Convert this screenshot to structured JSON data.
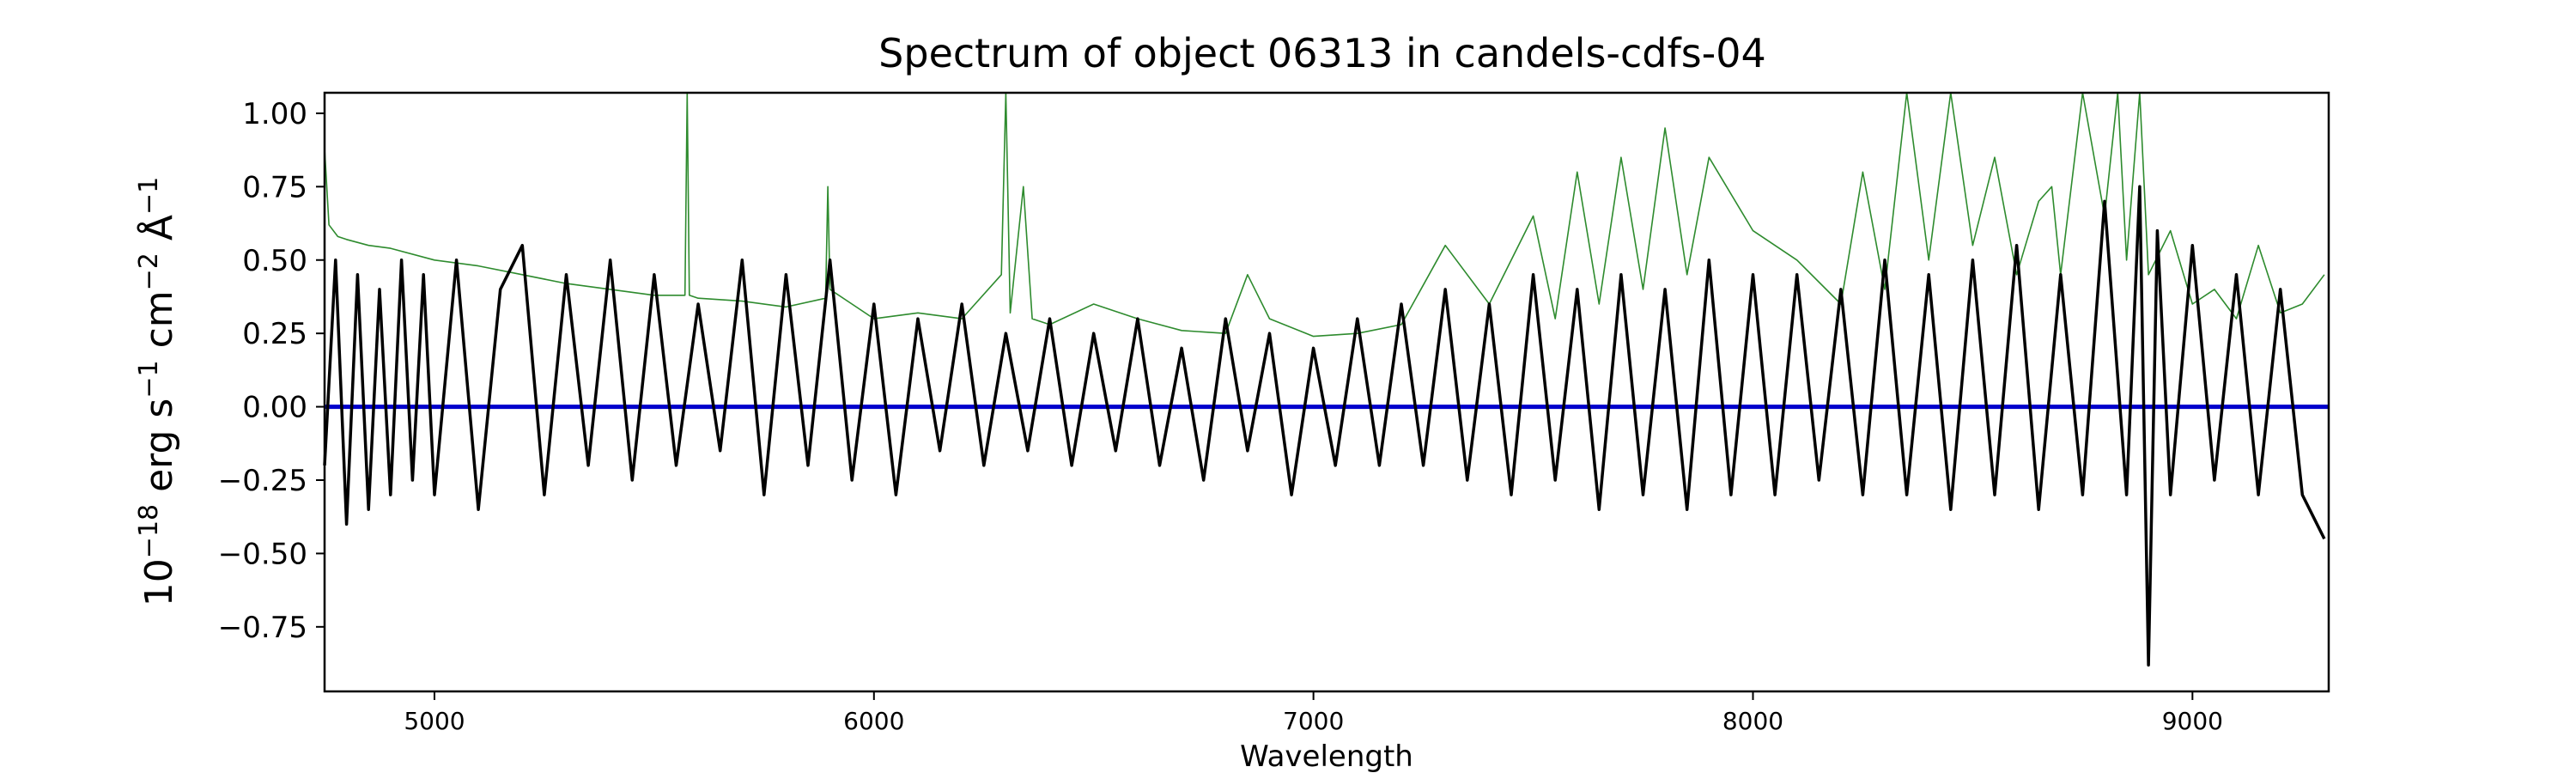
{
  "chart_data": {
    "type": "line",
    "title": "Spectrum of object 06313 in candels-cdfs-04",
    "xlabel": "Wavelength",
    "ylabel_parts": [
      "10",
      "−18",
      " erg s",
      "−1",
      " cm",
      "−2",
      " Å",
      "−1"
    ],
    "xlim": [
      4750,
      9310
    ],
    "ylim": [
      -0.97,
      1.07
    ],
    "x_ticks": [
      {
        "value": 5000,
        "label": "5000"
      },
      {
        "value": 6000,
        "label": "6000"
      },
      {
        "value": 7000,
        "label": "7000"
      },
      {
        "value": 8000,
        "label": "8000"
      },
      {
        "value": 9000,
        "label": "9000"
      }
    ],
    "y_ticks": [
      {
        "value": 1.0,
        "label": "1.00"
      },
      {
        "value": 0.75,
        "label": "0.75"
      },
      {
        "value": 0.5,
        "label": "0.50"
      },
      {
        "value": 0.25,
        "label": "0.25"
      },
      {
        "value": 0.0,
        "label": "0.00"
      },
      {
        "value": -0.25,
        "label": "−0.25"
      },
      {
        "value": -0.5,
        "label": "−0.50"
      },
      {
        "value": -0.75,
        "label": "−0.75"
      }
    ],
    "grid": false,
    "series": [
      {
        "role": "flux",
        "color": "#000000",
        "x": [
          4750,
          4775,
          4800,
          4825,
          4850,
          4875,
          4900,
          4925,
          4950,
          4975,
          5000,
          5050,
          5100,
          5150,
          5200,
          5250,
          5300,
          5350,
          5400,
          5450,
          5500,
          5550,
          5600,
          5650,
          5700,
          5750,
          5800,
          5850,
          5900,
          5950,
          6000,
          6050,
          6100,
          6150,
          6200,
          6250,
          6300,
          6350,
          6400,
          6450,
          6500,
          6550,
          6600,
          6650,
          6700,
          6750,
          6800,
          6850,
          6900,
          6950,
          7000,
          7050,
          7100,
          7150,
          7200,
          7250,
          7300,
          7350,
          7400,
          7450,
          7500,
          7550,
          7600,
          7650,
          7700,
          7750,
          7800,
          7850,
          7900,
          7950,
          8000,
          8050,
          8100,
          8150,
          8200,
          8250,
          8300,
          8350,
          8400,
          8450,
          8500,
          8550,
          8600,
          8650,
          8700,
          8750,
          8800,
          8850,
          8880,
          8900,
          8920,
          8950,
          9000,
          9050,
          9100,
          9150,
          9200,
          9250,
          9300
        ],
        "y": [
          -0.2,
          0.5,
          -0.4,
          0.45,
          -0.35,
          0.4,
          -0.3,
          0.5,
          -0.25,
          0.45,
          -0.3,
          0.5,
          -0.35,
          0.4,
          0.55,
          -0.3,
          0.45,
          -0.2,
          0.5,
          -0.25,
          0.45,
          -0.2,
          0.35,
          -0.15,
          0.5,
          -0.3,
          0.45,
          -0.2,
          0.5,
          -0.25,
          0.35,
          -0.3,
          0.3,
          -0.15,
          0.35,
          -0.2,
          0.25,
          -0.15,
          0.3,
          -0.2,
          0.25,
          -0.15,
          0.3,
          -0.2,
          0.2,
          -0.25,
          0.3,
          -0.15,
          0.25,
          -0.3,
          0.2,
          -0.2,
          0.3,
          -0.2,
          0.35,
          -0.2,
          0.4,
          -0.25,
          0.35,
          -0.3,
          0.45,
          -0.25,
          0.4,
          -0.35,
          0.45,
          -0.3,
          0.4,
          -0.35,
          0.5,
          -0.3,
          0.45,
          -0.3,
          0.45,
          -0.25,
          0.4,
          -0.3,
          0.5,
          -0.3,
          0.45,
          -0.35,
          0.5,
          -0.3,
          0.55,
          -0.35,
          0.45,
          -0.3,
          0.7,
          -0.3,
          0.75,
          -0.88,
          0.6,
          -0.3,
          0.55,
          -0.25,
          0.45,
          -0.3,
          0.4,
          -0.3,
          -0.45
        ]
      },
      {
        "role": "error",
        "color": "#2e8b2e",
        "x": [
          4750,
          4760,
          4780,
          4800,
          4850,
          4900,
          5000,
          5100,
          5200,
          5300,
          5400,
          5500,
          5570,
          5575,
          5580,
          5600,
          5700,
          5800,
          5890,
          5895,
          5900,
          5950,
          6000,
          6100,
          6200,
          6290,
          6300,
          6310,
          6340,
          6360,
          6400,
          6500,
          6600,
          6700,
          6800,
          6850,
          6900,
          7000,
          7100,
          7200,
          7300,
          7400,
          7500,
          7550,
          7600,
          7650,
          7700,
          7750,
          7800,
          7850,
          7900,
          8000,
          8100,
          8200,
          8250,
          8300,
          8350,
          8400,
          8450,
          8500,
          8550,
          8600,
          8650,
          8680,
          8700,
          8750,
          8800,
          8830,
          8850,
          8880,
          8900,
          8950,
          9000,
          9050,
          9100,
          9150,
          9200,
          9250,
          9300
        ],
        "y": [
          0.88,
          0.62,
          0.58,
          0.57,
          0.55,
          0.54,
          0.5,
          0.48,
          0.45,
          0.42,
          0.4,
          0.38,
          0.38,
          1.07,
          0.38,
          0.37,
          0.36,
          0.34,
          0.37,
          0.75,
          0.4,
          0.35,
          0.3,
          0.32,
          0.3,
          0.45,
          1.07,
          0.32,
          0.75,
          0.3,
          0.28,
          0.35,
          0.3,
          0.26,
          0.25,
          0.45,
          0.3,
          0.24,
          0.25,
          0.28,
          0.55,
          0.35,
          0.65,
          0.3,
          0.8,
          0.35,
          0.85,
          0.4,
          0.95,
          0.45,
          0.85,
          0.6,
          0.5,
          0.35,
          0.8,
          0.4,
          1.07,
          0.5,
          1.07,
          0.55,
          0.85,
          0.45,
          0.7,
          0.75,
          0.45,
          1.07,
          0.65,
          1.07,
          0.5,
          1.07,
          0.45,
          0.6,
          0.35,
          0.4,
          0.3,
          0.55,
          0.32,
          0.35,
          0.45
        ]
      },
      {
        "role": "model",
        "color": "#0000cc",
        "x": [
          4750,
          9310
        ],
        "y": [
          0.0,
          0.0
        ]
      }
    ]
  }
}
